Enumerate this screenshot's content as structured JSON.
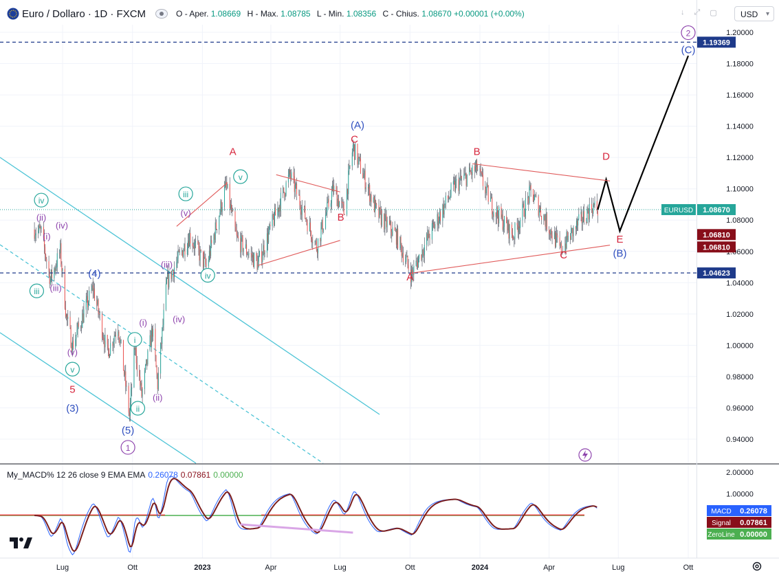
{
  "header": {
    "symbol": "Euro / Dollaro · 1D · FXCM",
    "ohlc": {
      "open_label": "O - Aper.",
      "open": "1.08669",
      "high_label": "H - Max.",
      "high": "1.08785",
      "low_label": "L - Min.",
      "low": "1.08356",
      "close_label": "C - Chius.",
      "close": "1.08670",
      "change": "+0.00001 (+0.00%)"
    },
    "currency": "USD"
  },
  "price_axis": {
    "ticks": [
      "1.20000",
      "1.18000",
      "1.16000",
      "1.14000",
      "1.12000",
      "1.10000",
      "1.08000",
      "1.06000",
      "1.04000",
      "1.02000",
      "1.00000",
      "0.98000",
      "0.96000",
      "0.94000"
    ],
    "badges": [
      {
        "text": "1.19369",
        "value": 1.19369,
        "color": "#1e3a8a"
      },
      {
        "text": "1.08670",
        "value": 1.0867,
        "color": "#26a69a",
        "label": "EURUSD"
      },
      {
        "text": "1.06810",
        "value": 1.0681,
        "color": "#880e1a"
      },
      {
        "text": "1.06810",
        "value": 1.0681,
        "color": "#880e1a"
      },
      {
        "text": "1.04623",
        "value": 1.04623,
        "color": "#1e3a8a"
      }
    ]
  },
  "time_axis": {
    "labels": [
      "Lug",
      "Ott",
      "2023",
      "Apr",
      "Lug",
      "Ott",
      "2024",
      "Apr",
      "Lug",
      "Ott"
    ],
    "bold": [
      "2023",
      "2024"
    ]
  },
  "macd": {
    "legend": {
      "name": "My_MACD% 12 26 close 9 EMA EMA",
      "macd": "0.26078",
      "signal": "0.07861",
      "zero": "0.00000"
    },
    "axis_ticks": [
      "2.00000",
      "1.00000"
    ],
    "badges": [
      {
        "label": "MACD",
        "value": "0.26078",
        "color": "#2962ff"
      },
      {
        "label": "Signal",
        "value": "0.07861",
        "color": "#880e1a"
      },
      {
        "label": "ZeroLine",
        "value": "0.00000",
        "color": "#4caf50"
      }
    ]
  },
  "chart_data": {
    "type": "candlestick",
    "symbol": "Euro / Dollaro · 1D · FXCM",
    "x_axis": {
      "labels": [
        "Lug",
        "Ott",
        "2023",
        "Apr",
        "Lug",
        "Ott",
        "2024",
        "Apr",
        "Lug",
        "Ott"
      ]
    },
    "y_axis": {
      "range": [
        0.925,
        1.205
      ]
    },
    "horizontal_lines": [
      1.19369,
      1.04623
    ],
    "last_price": 1.0867,
    "price_path": [
      {
        "t": "2022-05-25",
        "p": 1.074
      },
      {
        "t": "2022-06-03",
        "p": 1.072
      },
      {
        "t": "2022-06-15",
        "p": 1.042
      },
      {
        "t": "2022-06-28",
        "p": 1.06
      },
      {
        "t": "2022-07-06",
        "p": 1.018
      },
      {
        "t": "2022-07-14",
        "p": 1.0
      },
      {
        "t": "2022-08-10",
        "p": 1.037
      },
      {
        "t": "2022-08-29",
        "p": 0.995
      },
      {
        "t": "2022-09-12",
        "p": 1.013
      },
      {
        "t": "2022-09-27",
        "p": 0.955
      },
      {
        "t": "2022-10-04",
        "p": 0.999
      },
      {
        "t": "2022-10-13",
        "p": 0.968
      },
      {
        "t": "2022-10-27",
        "p": 1.01
      },
      {
        "t": "2022-11-03",
        "p": 0.975
      },
      {
        "t": "2022-11-15",
        "p": 1.04
      },
      {
        "t": "2022-12-15",
        "p": 1.07
      },
      {
        "t": "2023-01-06",
        "p": 1.05
      },
      {
        "t": "2023-02-01",
        "p": 1.102
      },
      {
        "t": "2023-02-15",
        "p": 1.068
      },
      {
        "t": "2023-03-15",
        "p": 1.052
      },
      {
        "t": "2023-04-26",
        "p": 1.109
      },
      {
        "t": "2023-05-31",
        "p": 1.063
      },
      {
        "t": "2023-06-22",
        "p": 1.1
      },
      {
        "t": "2023-07-06",
        "p": 1.085
      },
      {
        "t": "2023-07-18",
        "p": 1.127
      },
      {
        "t": "2023-08-18",
        "p": 1.085
      },
      {
        "t": "2023-09-13",
        "p": 1.07
      },
      {
        "t": "2023-10-03",
        "p": 1.045
      },
      {
        "t": "2023-10-23",
        "p": 1.067
      },
      {
        "t": "2023-11-29",
        "p": 1.102
      },
      {
        "t": "2023-12-28",
        "p": 1.113
      },
      {
        "t": "2024-01-18",
        "p": 1.088
      },
      {
        "t": "2024-02-14",
        "p": 1.07
      },
      {
        "t": "2024-03-08",
        "p": 1.098
      },
      {
        "t": "2024-04-16",
        "p": 1.061
      },
      {
        "t": "2024-05-10",
        "p": 1.078
      },
      {
        "t": "2024-05-28",
        "p": 1.089
      },
      {
        "t": "2024-06-04",
        "p": 1.0867
      }
    ],
    "projection": [
      {
        "t": "2024-06-04",
        "p": 1.0867
      },
      {
        "t": "2024-06-15",
        "p": 1.106
      },
      {
        "t": "2024-07-03",
        "p": 1.073
      },
      {
        "t": "2024-10-01",
        "p": 1.185
      }
    ],
    "wave_labels": [
      {
        "text": "(ii)",
        "t": "2022-06-03",
        "p": 1.08,
        "color": "#8e44ad"
      },
      {
        "text": "iv",
        "t": "2022-06-03",
        "p": 1.091,
        "color": "#26a69a",
        "circle": true
      },
      {
        "text": "(i)",
        "t": "2022-06-10",
        "p": 1.068,
        "color": "#8e44ad"
      },
      {
        "text": "(iv)",
        "t": "2022-06-30",
        "p": 1.075,
        "color": "#8e44ad"
      },
      {
        "text": "iii",
        "t": "2022-05-28",
        "p": 1.033,
        "color": "#26a69a",
        "circle": true
      },
      {
        "text": "(iii)",
        "t": "2022-06-22",
        "p": 1.035,
        "color": "#8e44ad"
      },
      {
        "text": "(4)",
        "t": "2022-08-12",
        "p": 1.044,
        "color": "#2f4fbf"
      },
      {
        "text": "(v)",
        "t": "2022-07-14",
        "p": 0.994,
        "color": "#8e44ad"
      },
      {
        "text": "v",
        "t": "2022-07-14",
        "p": 0.983,
        "color": "#26a69a",
        "circle": true
      },
      {
        "text": "5",
        "t": "2022-07-14",
        "p": 0.97,
        "color": "#d7263d"
      },
      {
        "text": "(3)",
        "t": "2022-07-14",
        "p": 0.958,
        "color": "#2f4fbf"
      },
      {
        "text": "i",
        "t": "2022-10-04",
        "p": 1.002,
        "color": "#26a69a",
        "circle": true
      },
      {
        "text": "(i)",
        "t": "2022-10-15",
        "p": 1.013,
        "color": "#8e44ad"
      },
      {
        "text": "(ii)",
        "t": "2022-11-03",
        "p": 0.965,
        "color": "#8e44ad"
      },
      {
        "text": "ii",
        "t": "2022-10-08",
        "p": 0.958,
        "color": "#26a69a",
        "circle": true
      },
      {
        "text": "(5)",
        "t": "2022-09-25",
        "p": 0.944,
        "color": "#2f4fbf"
      },
      {
        "text": "1",
        "t": "2022-09-25",
        "p": 0.933,
        "color": "#8e44ad",
        "circle": true
      },
      {
        "text": "(iii)",
        "t": "2022-11-15",
        "p": 1.05,
        "color": "#8e44ad"
      },
      {
        "text": "(iv)",
        "t": "2022-12-01",
        "p": 1.015,
        "color": "#8e44ad"
      },
      {
        "text": "(v)",
        "t": "2022-12-10",
        "p": 1.083,
        "color": "#8e44ad"
      },
      {
        "text": "iii",
        "t": "2022-12-10",
        "p": 1.095,
        "color": "#26a69a",
        "circle": true
      },
      {
        "text": "iv",
        "t": "2023-01-08",
        "p": 1.043,
        "color": "#26a69a",
        "circle": true
      },
      {
        "text": "v",
        "t": "2023-02-20",
        "p": 1.106,
        "color": "#26a69a",
        "circle": true
      },
      {
        "text": "A",
        "t": "2023-02-10",
        "p": 1.122,
        "color": "#d7263d"
      },
      {
        "text": "B",
        "t": "2023-07-02",
        "p": 1.08,
        "color": "#d7263d"
      },
      {
        "text": "(A)",
        "t": "2023-07-24",
        "p": 1.139,
        "color": "#2f4fbf"
      },
      {
        "text": "C",
        "t": "2023-07-20",
        "p": 1.13,
        "color": "#d7263d"
      },
      {
        "text": "A",
        "t": "2023-10-01",
        "p": 1.042,
        "color": "#d7263d"
      },
      {
        "text": "B",
        "t": "2023-12-28",
        "p": 1.122,
        "color": "#d7263d"
      },
      {
        "text": "C",
        "t": "2024-04-20",
        "p": 1.056,
        "color": "#d7263d"
      },
      {
        "text": "D",
        "t": "2024-06-15",
        "p": 1.119,
        "color": "#d7263d"
      },
      {
        "text": "E",
        "t": "2024-07-03",
        "p": 1.066,
        "color": "#d7263d"
      },
      {
        "text": "(B)",
        "t": "2024-07-03",
        "p": 1.057,
        "color": "#2f4fbf"
      },
      {
        "text": "(C)",
        "t": "2024-10-01",
        "p": 1.187,
        "color": "#2f4fbf"
      },
      {
        "text": "2",
        "t": "2024-10-01",
        "p": 1.198,
        "color": "#8e44ad",
        "circle": true
      }
    ]
  }
}
